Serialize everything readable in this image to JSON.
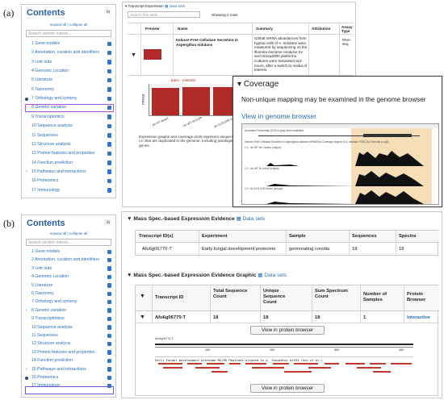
{
  "labels": {
    "a": "(a)",
    "b": "(b)"
  },
  "sidebar": {
    "title": "Contents",
    "collapse_icon": "«",
    "toggle_text": "expand all | collapse all",
    "search_placeholder": "Search section names...",
    "items_a": [
      "1 Gene models",
      "2 Annotation, curation and identifiers",
      "3 Link outs",
      "4 Genomic Location",
      "5 Literature",
      "6 Taxonomy",
      "7 Orthology and synteny",
      "8 Genetic variation",
      "9 Transcriptomics",
      "10 Sequence analysis",
      "11 Sequences",
      "12 Structure analysis",
      "13 Protein features and properties",
      "14 Function prediction",
      "15 Pathways and interactions",
      "16 Proteomics",
      "17 Immunology"
    ],
    "items_b": [
      "1 Gene models",
      "2 Annotation, curation and identifiers",
      "3 Link outs",
      "4 Genomic Location",
      "5 Literature",
      "6 Taxonomy",
      "7 Orthology and synteny",
      "8 Genetic variation",
      "9 Transcriptomics",
      "10 Sequence analysis",
      "11 Sequences",
      "12 Structure analysis",
      "13 Protein features and properties",
      "14 Function prediction",
      "15 Pathways and interactions",
      "16 Proteomics",
      "17 Immunology"
    ]
  },
  "transcript_expression": {
    "title": "Transcript Expression",
    "datasets_label": "Data sets",
    "search_placeholder": "Search this table...",
    "showing": "Showing 2 rows",
    "headers": [
      "Preview",
      "Name",
      "Summary",
      "Attribution",
      "Assay Type"
    ],
    "row_name": "Inducer-Free Cellulase Secretion in Aspergillus nidulans",
    "row_summary": "Global mRNA abundances from hyphal cells of A. nidulans were measured by sequencing on the Illumina Genome Analyzer IIx and HiSeq2000 platforms. Cultures were harvested at 6 hours, after a switch to media of interest.",
    "row_assay": "RNA-seq",
    "chart_title": "fpkm - AN8182",
    "chart_ylabel": "FPKM",
    "chart_xlabels": [
      "An WT Avicel",
      "An WT 2h CCR-",
      "An CLR-2OE Avicel"
    ],
    "caption": "Expression graphs and coverage plots represent unique reads, i.e. that are duplicated in the genome, including paralogous genes."
  },
  "coverage": {
    "title": "Coverage",
    "note": "Non-unique mapping may be examined in the genome browser",
    "link": "View in genome browser",
    "track1": "Annotated Transcripts (CDS in gray when available)",
    "track2": "Inducer-Free Cellulase Secretion in Aspergillus nidulans mRNASeq Coverage aligned to A. nidulans FGSC A4 Genome (Log2)",
    "sub1": "1.0 - An WT No Carbon (unique)",
    "sub2": "1.0 - An WT 2h Avicel (unique)",
    "sub3": "1.0 - An CLR-2OE Avicel (unique)",
    "scale": "55.0"
  },
  "mass_spec": {
    "title": "Mass Spec.-based Expression Evidence",
    "datasets_label": "Data sets",
    "headers": [
      "Transcript ID(s)",
      "Experiment",
      "Sample",
      "Sequences",
      "Spectra"
    ],
    "row": [
      "Afu6g06770-T",
      "Early fungal development proteome",
      "germinating conidia",
      "18",
      "18"
    ]
  },
  "mass_spec_graphic": {
    "title": "Mass Spec.-based Expression Evidence Graphic",
    "datasets_label": "Data sets",
    "headers": [
      "Transcript ID",
      "Total Sequence Count",
      "Unique Sequence Count",
      "Sum Spectrum Count",
      "Number of Samples",
      "Protein Browser"
    ],
    "row": [
      "Afu6g06770-T",
      "18",
      "18",
      "18",
      "1",
      "Interactive"
    ],
    "button": "View in protein browser",
    "axis_ticks": [
      "100",
      "200",
      "300",
      "400"
    ],
    "track_label": "Early Fungal development proteome MS/MS Peptides aligned to A. fumigatus Af293 (Suh et al.)",
    "gene_label": "Afu6g06770-T"
  },
  "colors": {
    "accent": "#2a6fb8",
    "bar": "#b12a2a",
    "highlight_a": "#b84be0",
    "highlight_b": "#6d52e0",
    "coverage_bg": "#f6dfb8"
  }
}
